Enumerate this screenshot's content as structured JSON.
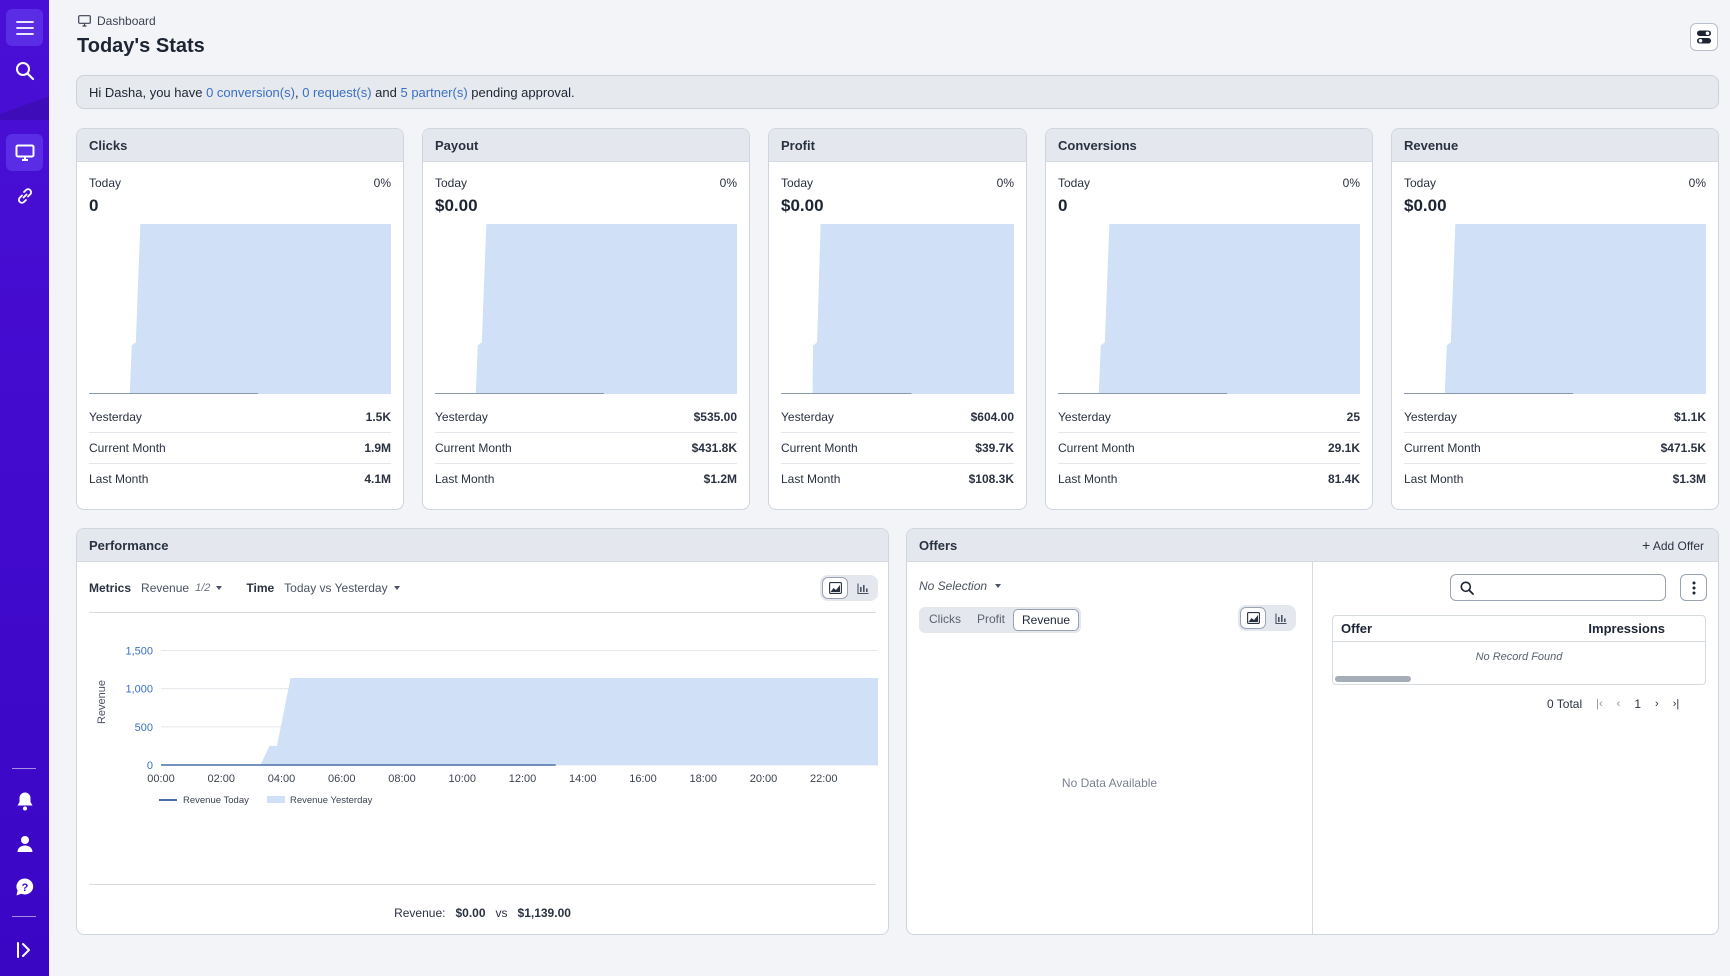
{
  "sidebar": {
    "top_items": [
      "menu-icon",
      "search-icon"
    ],
    "nav_items": [
      "dashboard-icon",
      "link-icon"
    ],
    "bottom_items": [
      "bell-icon",
      "user-icon",
      "help-icon",
      "expand-icon"
    ]
  },
  "header": {
    "breadcrumb": "Dashboard",
    "title": "Today's Stats"
  },
  "notice": {
    "prefix": "Hi Dasha, you have ",
    "conversions": "0 conversion(s)",
    "sep1": ", ",
    "requests": "0 request(s)",
    "sep2": " and ",
    "partners": "5 partner(s)",
    "suffix": " pending approval."
  },
  "cards": [
    {
      "title": "Clicks",
      "today_label": "Today",
      "pct": "0%",
      "today_value": "0",
      "rows": [
        {
          "label": "Yesterday",
          "value": "1.5K"
        },
        {
          "label": "Current Month",
          "value": "1.9M"
        },
        {
          "label": "Last Month",
          "value": "4.1M"
        }
      ]
    },
    {
      "title": "Payout",
      "today_label": "Today",
      "pct": "0%",
      "today_value": "$0.00",
      "rows": [
        {
          "label": "Yesterday",
          "value": "$535.00"
        },
        {
          "label": "Current Month",
          "value": "$431.8K"
        },
        {
          "label": "Last Month",
          "value": "$1.2M"
        }
      ]
    },
    {
      "title": "Profit",
      "today_label": "Today",
      "pct": "0%",
      "today_value": "$0.00",
      "rows": [
        {
          "label": "Yesterday",
          "value": "$604.00"
        },
        {
          "label": "Current Month",
          "value": "$39.7K"
        },
        {
          "label": "Last Month",
          "value": "$108.3K"
        }
      ]
    },
    {
      "title": "Conversions",
      "today_label": "Today",
      "pct": "0%",
      "today_value": "0",
      "rows": [
        {
          "label": "Yesterday",
          "value": "25"
        },
        {
          "label": "Current Month",
          "value": "29.1K"
        },
        {
          "label": "Last Month",
          "value": "81.4K"
        }
      ]
    },
    {
      "title": "Revenue",
      "today_label": "Today",
      "pct": "0%",
      "today_value": "$0.00",
      "rows": [
        {
          "label": "Yesterday",
          "value": "$1.1K"
        },
        {
          "label": "Current Month",
          "value": "$471.5K"
        },
        {
          "label": "Last Month",
          "value": "$1.3M"
        }
      ]
    }
  ],
  "performance": {
    "title": "Performance",
    "metrics_label": "Metrics",
    "metrics_value": "Revenue",
    "metrics_count": "1/2",
    "time_label": "Time",
    "time_value": "Today vs Yesterday",
    "summary_prefix": "Revenue:",
    "summary_today": "$0.00",
    "summary_vs": "vs",
    "summary_yesterday": "$1,139.00"
  },
  "chart_data": {
    "type": "area",
    "ylabel": "Revenue",
    "yticks": [
      0,
      500,
      1000,
      1500
    ],
    "ytick_labels": [
      "0",
      "500",
      "1,000",
      "1,500"
    ],
    "ylim": [
      0,
      1650
    ],
    "xticks": [
      "00:00",
      "02:00",
      "04:00",
      "06:00",
      "08:00",
      "10:00",
      "12:00",
      "14:00",
      "16:00",
      "18:00",
      "20:00",
      "22:00"
    ],
    "xlim": [
      0,
      23.8
    ],
    "series": [
      {
        "name": "Revenue Today",
        "style": "line",
        "color": "#4a6fa5",
        "points": [
          [
            0,
            0
          ],
          [
            13.1,
            0
          ]
        ]
      },
      {
        "name": "Revenue Yesterday",
        "style": "area",
        "color": "#cfe0f7",
        "points": [
          [
            0,
            0
          ],
          [
            3.3,
            0
          ],
          [
            3.6,
            250
          ],
          [
            3.85,
            250
          ],
          [
            4.3,
            1139
          ],
          [
            23.8,
            1139
          ]
        ]
      }
    ],
    "legend": "bottom-left",
    "grid": true
  },
  "offers": {
    "title": "Offers",
    "add_label": "Add Offer",
    "selection": "No Selection",
    "segments": [
      "Clicks",
      "Profit",
      "Revenue"
    ],
    "active_segment": "Revenue",
    "empty_text": "No Data Available",
    "table_headers": [
      "Offer",
      "Impressions"
    ],
    "no_record": "No Record Found",
    "total": "0 Total",
    "page": "1"
  },
  "colors": {
    "sidebar": "#3a06c4",
    "accent_link": "#3b6fc4",
    "area_fill": "#cfe0f7"
  }
}
